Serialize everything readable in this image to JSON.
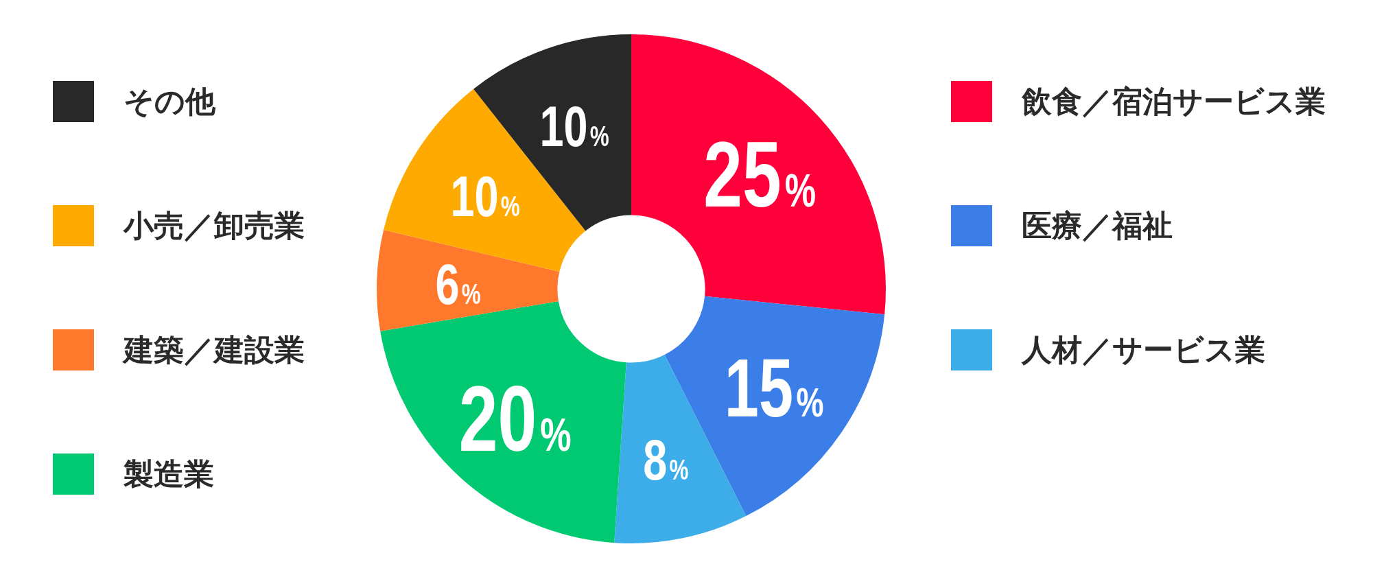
{
  "chart_data": {
    "type": "donut",
    "categories": [
      "飲食／宿泊サービス業",
      "医療／福祉",
      "人材／サービス業",
      "製造業",
      "建築／建設業",
      "小売／卸売業",
      "その他"
    ],
    "values": [
      25,
      15,
      8,
      20,
      6,
      10,
      10
    ],
    "colors": [
      "#ff003b",
      "#3c7ee8",
      "#3cade8",
      "#00c971",
      "#ff782b",
      "#ffaa00",
      "#282828"
    ],
    "value_labels": [
      "25%",
      "15%",
      "8%",
      "20%",
      "6%",
      "10%",
      "10%"
    ],
    "legend": "right"
  }
}
